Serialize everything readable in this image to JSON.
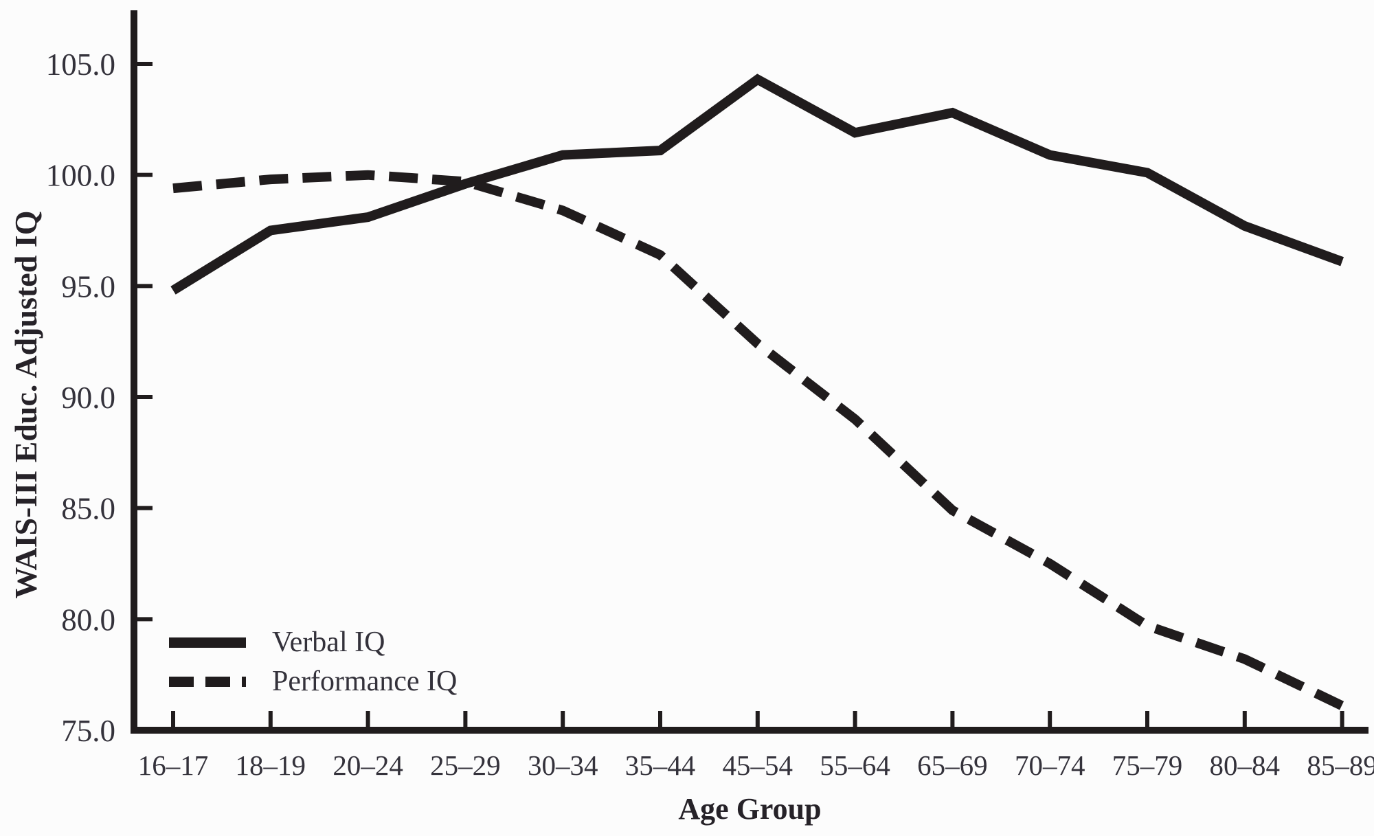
{
  "figure": {
    "background": "#fcfcfc",
    "ink_color": "#201c1d",
    "text_color": "#34323b"
  },
  "chart_data": {
    "type": "line",
    "title": "",
    "xlabel": "Age Group",
    "ylabel": "WAIS-III Educ. Adjusted IQ",
    "categories": [
      "16–17",
      "18–19",
      "20–24",
      "25–29",
      "30–34",
      "35–44",
      "45–54",
      "55–64",
      "65–69",
      "70–74",
      "75–79",
      "80–84",
      "85–89"
    ],
    "series": [
      {
        "name": "Verbal IQ",
        "style": "solid",
        "values": [
          94.8,
          97.5,
          98.1,
          99.6,
          100.9,
          101.1,
          104.3,
          101.9,
          102.8,
          100.9,
          100.1,
          97.7,
          96.1
        ]
      },
      {
        "name": "Performance IQ",
        "style": "dashed",
        "values": [
          99.4,
          99.8,
          100.0,
          99.7,
          98.4,
          96.4,
          92.4,
          89.0,
          84.9,
          82.5,
          79.7,
          78.2,
          76.1
        ]
      }
    ],
    "ylim": [
      75,
      105
    ],
    "ytick_values": [
      75,
      80,
      85,
      90,
      95,
      100,
      105
    ],
    "yticks": [
      "75.0",
      "80.0",
      "85.0",
      "90.0",
      "95.0",
      "100.0",
      "105.0"
    ],
    "grid": false,
    "legend_position": "lower-left"
  }
}
